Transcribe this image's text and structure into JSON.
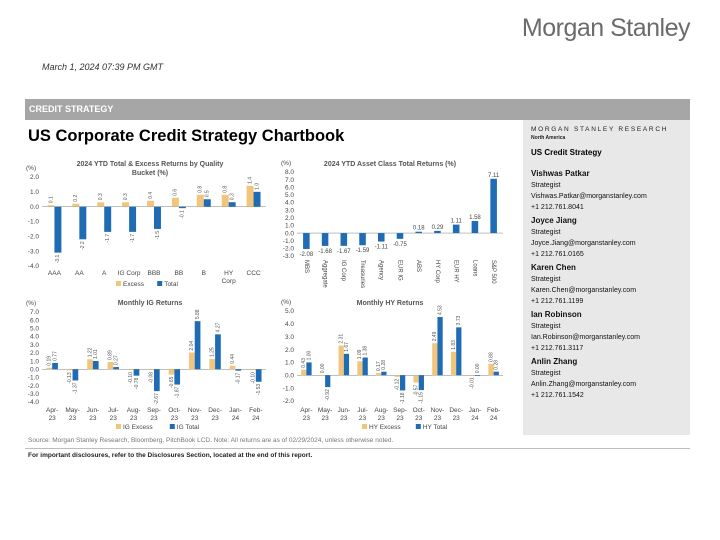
{
  "header": {
    "logo": "Morgan Stanley",
    "datetime": "March 1, 2024 07:39 PM GMT",
    "section": "CREDIT STRATEGY",
    "title": "US Corporate Credit Strategy Chartbook"
  },
  "sidebar": {
    "header": "MORGAN STANLEY RESEARCH",
    "sub": "North America",
    "team": "US Credit Strategy",
    "contacts": [
      {
        "name": "Vishwas Patkar",
        "role": "Strategist",
        "email": "Vishwas.Patkar@morganstanley.com",
        "phone": "+1 212.761.8041"
      },
      {
        "name": "Joyce Jiang",
        "role": "Strategist",
        "email": "Joyce.Jiang@morganstanley.com",
        "phone": "+1 212.761.0165"
      },
      {
        "name": "Karen Chen",
        "role": "Strategist",
        "email": "Karen.Chen@morganstanley.com",
        "phone": "+1 212.761.1199"
      },
      {
        "name": "Ian Robinson",
        "role": "Strategist",
        "email": "Ian.Robinson@morganstanley.com",
        "phone": "+1 212.761.3117"
      },
      {
        "name": "Anlin Zhang",
        "role": "Strategist",
        "email": "Anlin.Zhang@morganstanley.com",
        "phone": "+1 212.761.1542"
      }
    ]
  },
  "footer": {
    "source": "Source: Morgan Stanley Research, Bloomberg, PitchBook LCD. Note: All returns are as of 02/29/2024, unless otherwise noted.",
    "disclosure": "For important disclosures, refer to the Disclosures Section, located at the end of this report."
  },
  "chart_data": [
    {
      "type": "bar",
      "title": "2024 YTD Total & Excess Returns by Quality Bucket  (%)",
      "unit_label": "(%)",
      "categories": [
        "AAA",
        "AA",
        "A",
        "IG Corp",
        "BBB",
        "BB",
        "B",
        "HY Corp",
        "CCC"
      ],
      "series": [
        {
          "name": "Excess",
          "color": "#f2c57c",
          "values": [
            0.1,
            0.2,
            0.3,
            0.3,
            0.4,
            0.6,
            0.8,
            0.8,
            1.4
          ]
        },
        {
          "name": "Total",
          "color": "#1f6cb5",
          "values": [
            -3.1,
            -2.2,
            -1.7,
            -1.7,
            -1.5,
            -0.1,
            0.5,
            0.3,
            1.0
          ]
        }
      ],
      "ylim": [
        -4.0,
        2.0
      ],
      "yticks": [
        "2.0",
        "1.0",
        "0.0",
        "-1.0",
        "-2.0",
        "-3.0",
        "-4.0"
      ],
      "legend": "bottom"
    },
    {
      "type": "bar",
      "title": "2024 YTD Asset Class Total Returns (%)",
      "unit_label": "(%)",
      "categories": [
        "MBS",
        "Aggregate",
        "IG Corp",
        "Treasuries",
        "Agency",
        "EUR IG",
        "ABS",
        "HY Corp",
        "EUR HY",
        "Loans",
        "S&P 500"
      ],
      "series": [
        {
          "name": "Total",
          "color": "#1f6cb5",
          "values": [
            -2.08,
            -1.68,
            -1.67,
            -1.59,
            -1.11,
            -0.75,
            0.18,
            0.29,
            1.11,
            1.58,
            7.11
          ]
        }
      ],
      "labels": [
        "-2.08",
        "-1.68",
        "-1.67",
        "-1.59",
        "-1.11",
        "-0.75",
        "0.18",
        "0.29",
        "1.11",
        "1.58",
        "7.11"
      ],
      "ylim": [
        -3.0,
        8.0
      ],
      "yticks": [
        "8.0",
        "7.0",
        "6.0",
        "5.0",
        "4.0",
        "3.0",
        "2.0",
        "1.0",
        "0.0",
        "-1.0",
        "-2.0",
        "-3.0"
      ]
    },
    {
      "type": "bar",
      "title": "Monthly  IG Returns",
      "unit_label": "(%)",
      "categories": [
        "Apr-23",
        "May-23",
        "Jun-23",
        "Jul-23",
        "Aug-23",
        "Sep-23",
        "Oct-23",
        "Nov-23",
        "Dec-23",
        "Jan-24",
        "Feb-24"
      ],
      "series": [
        {
          "name": "IG Excess",
          "color": "#f2c57c",
          "values": [
            0.19,
            -0.13,
            1.22,
            0.89,
            -0.1,
            -0.08,
            -0.65,
            2.04,
            1.25,
            0.44,
            -0.1
          ]
        },
        {
          "name": "IG Total",
          "color": "#1f6cb5",
          "values": [
            0.77,
            -1.37,
            1.01,
            0.27,
            -0.78,
            -2.67,
            -1.87,
            5.88,
            4.27,
            -0.17,
            -1.53
          ]
        }
      ],
      "ylim": [
        -4.0,
        7.0
      ],
      "yticks": [
        "7.0",
        "6.0",
        "5.0",
        "4.0",
        "3.0",
        "2.0",
        "1.0",
        "0.0",
        "-1.0",
        "-2.0",
        "-3.0",
        "-4.0"
      ],
      "legend": "bottom"
    },
    {
      "type": "bar",
      "title": "Monthly  HY Returns",
      "unit_label": "(%)",
      "categories": [
        "Apr-23",
        "May-23",
        "Jun-23",
        "Jul-23",
        "Aug-23",
        "Sep-23",
        "Oct-23",
        "Nov-23",
        "Dec-23",
        "Jan-24",
        "Feb-24"
      ],
      "series": [
        {
          "name": "HY Excess",
          "color": "#f2c57c",
          "values": [
            0.43,
            -0.0,
            2.31,
            1.09,
            0.17,
            -0.12,
            -0.57,
            2.49,
            1.83,
            -0.01,
            0.88
          ]
        },
        {
          "name": "HY Total",
          "color": "#1f6cb5",
          "values": [
            1.0,
            -0.92,
            1.67,
            1.38,
            0.28,
            -1.18,
            -1.15,
            4.53,
            3.73,
            0.0,
            0.28
          ]
        }
      ],
      "ylim": [
        -2.0,
        5.0
      ],
      "yticks": [
        "5.0",
        "4.0",
        "3.0",
        "2.0",
        "1.0",
        "0.0",
        "-1.0",
        "-2.0"
      ],
      "legend": "bottom"
    }
  ]
}
